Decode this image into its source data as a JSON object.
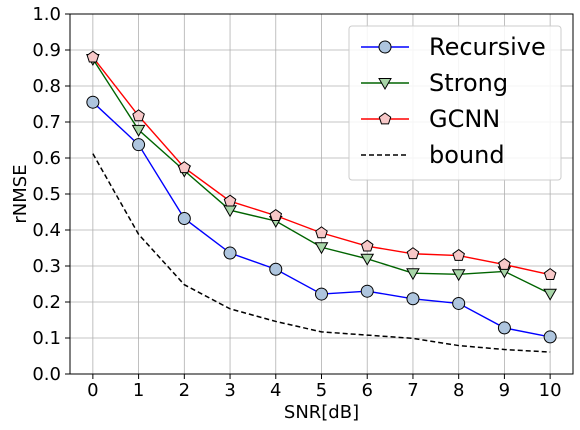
{
  "chart_data": {
    "type": "line",
    "title": "",
    "xlabel": "SNR[dB]",
    "ylabel": "rNMSE",
    "xlim": [
      -0.5,
      10.5
    ],
    "ylim": [
      0.0,
      1.0
    ],
    "x": [
      0,
      1,
      2,
      3,
      4,
      5,
      6,
      7,
      8,
      9,
      10
    ],
    "xticks": [
      "0",
      "1",
      "2",
      "3",
      "4",
      "5",
      "6",
      "7",
      "8",
      "9",
      "10"
    ],
    "yticks": [
      "0.0",
      "0.1",
      "0.2",
      "0.3",
      "0.4",
      "0.5",
      "0.6",
      "0.7",
      "0.8",
      "0.9",
      "1.0"
    ],
    "grid": true,
    "legend_position": "top-right",
    "series": [
      {
        "name": "Recursive",
        "color": "#0000ff",
        "marker_fill": "#aec5de",
        "marker": "circle",
        "line": "solid",
        "values": [
          0.755,
          0.637,
          0.432,
          0.336,
          0.291,
          0.222,
          0.23,
          0.209,
          0.196,
          0.128,
          0.103
        ]
      },
      {
        "name": "Strong",
        "color": "#006400",
        "marker_fill": "#a8d5a8",
        "marker": "triangle-down",
        "line": "solid",
        "values": [
          0.875,
          0.678,
          0.565,
          0.455,
          0.425,
          0.352,
          0.32,
          0.28,
          0.277,
          0.285,
          0.223
        ]
      },
      {
        "name": "GCNN",
        "color": "#ff0000",
        "marker_fill": "#f7c8c8",
        "marker": "pentagon",
        "line": "solid",
        "values": [
          0.88,
          0.717,
          0.573,
          0.48,
          0.44,
          0.392,
          0.355,
          0.334,
          0.329,
          0.304,
          0.276
        ]
      },
      {
        "name": "bound",
        "color": "#000000",
        "marker": "none",
        "line": "dashed",
        "values": [
          0.612,
          0.388,
          0.248,
          0.181,
          0.146,
          0.117,
          0.108,
          0.099,
          0.079,
          0.068,
          0.061
        ]
      }
    ]
  }
}
